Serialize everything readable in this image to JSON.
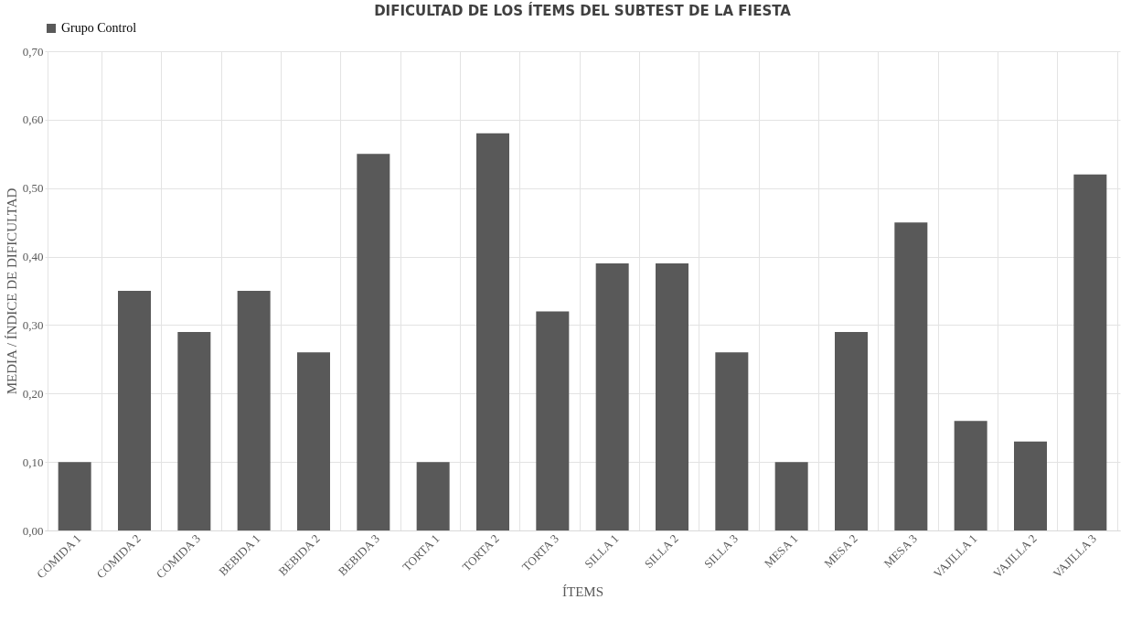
{
  "chart_data": {
    "type": "bar",
    "title": "DIFICULTAD DE LOS ÍTEMS DEL SUBTEST DE LA FIESTA",
    "xlabel": "ÍTEMS",
    "ylabel": "MEDIA / ÍNDICE DE DIFICULTAD",
    "categories": [
      "COMIDA 1",
      "COMIDA 2",
      "COMIDA 3",
      "BEBIDA 1",
      "BEBIDA 2",
      "BEBIDA 3",
      "TORTA 1",
      "TORTA 2",
      "TORTA 3",
      "SILLA 1",
      "SILLA 2",
      "SILLA 3",
      "MESA 1",
      "MESA 2",
      "MESA 3",
      "VAJILLA 1",
      "VAJILLA 2",
      "VAJILLA 3"
    ],
    "series": [
      {
        "name": "Grupo Control",
        "color": "#595959",
        "values": [
          0.1,
          0.35,
          0.29,
          0.35,
          0.26,
          0.55,
          0.1,
          0.58,
          0.32,
          0.39,
          0.39,
          0.26,
          0.1,
          0.29,
          0.45,
          0.16,
          0.13,
          0.52
        ]
      }
    ],
    "ylim": [
      0,
      0.7
    ],
    "yticks": [
      {
        "value": 0,
        "label": "0,00"
      },
      {
        "value": 0.1,
        "label": "0,10"
      },
      {
        "value": 0.2,
        "label": "0,20"
      },
      {
        "value": 0.3,
        "label": "0,30"
      },
      {
        "value": 0.4,
        "label": "0,40"
      },
      {
        "value": 0.5,
        "label": "0,50"
      },
      {
        "value": 0.6,
        "label": "0,60"
      },
      {
        "value": 0.7,
        "label": "0,70"
      }
    ],
    "grid": true,
    "legend": "top"
  }
}
